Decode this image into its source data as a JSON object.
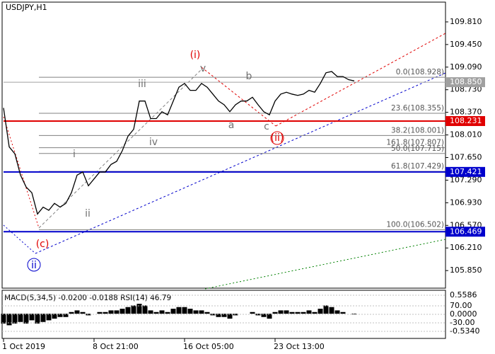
{
  "chart_data": {
    "type": "line",
    "title": "USDJPY,H1",
    "series": [
      {
        "name": "USDJPY",
        "color": "#000000",
        "values": [
          108.44,
          107.82,
          107.71,
          107.37,
          107.18,
          107.09,
          106.75,
          106.86,
          106.81,
          106.92,
          106.86,
          106.92,
          107.09,
          107.37,
          107.42,
          107.2,
          107.31,
          107.42,
          107.42,
          107.54,
          107.59,
          107.76,
          107.99,
          108.1,
          108.55,
          108.55,
          108.27,
          108.27,
          108.38,
          108.33,
          108.55,
          108.77,
          108.83,
          108.72,
          108.72,
          108.83,
          108.77,
          108.66,
          108.55,
          108.49,
          108.38,
          108.49,
          108.55,
          108.55,
          108.61,
          108.49,
          108.38,
          108.33,
          108.55,
          108.66,
          108.69,
          108.66,
          108.64,
          108.66,
          108.72,
          108.69,
          108.83,
          109.0,
          109.02,
          108.94,
          108.94,
          108.89,
          108.87
        ]
      }
    ],
    "xlim": [
      0,
      78
    ],
    "xticks": [
      {
        "value": 0,
        "label": "1 Oct 2019"
      },
      {
        "value": 16,
        "label": "8 Oct 21:00"
      },
      {
        "value": 32,
        "label": "16 Oct 05:00"
      },
      {
        "value": 48,
        "label": "23 Oct 13:00"
      }
    ],
    "ylim": [
      105.57,
      110.125
    ],
    "yticks": [
      {
        "value": 109.81,
        "label": "109.810"
      },
      {
        "value": 109.45,
        "label": "109.450"
      },
      {
        "value": 109.09,
        "label": "109.090"
      },
      {
        "value": 108.73,
        "label": "108.730"
      },
      {
        "value": 108.37,
        "label": "108.370"
      },
      {
        "value": 108.01,
        "label": "108.010"
      },
      {
        "value": 107.65,
        "label": "107.650"
      },
      {
        "value": 107.29,
        "label": "107.290"
      },
      {
        "value": 106.93,
        "label": "106.930"
      },
      {
        "value": 106.57,
        "label": "106.570"
      },
      {
        "value": 106.21,
        "label": "106.210"
      },
      {
        "value": 105.85,
        "label": "105.850"
      }
    ],
    "current": {
      "value": 108.85,
      "label": "108.850",
      "color": "#a0a0a0"
    },
    "levels": [
      {
        "value": 108.231,
        "label": "108.231",
        "color": "#e00000"
      },
      {
        "value": 107.421,
        "label": "107.421",
        "color": "#0000cc"
      },
      {
        "value": 106.469,
        "label": "106.469",
        "color": "#0000cc"
      }
    ],
    "fibo": [
      {
        "value": 108.928,
        "label": "0.0(108.928)"
      },
      {
        "value": 108.355,
        "label": "23.6(108.355)"
      },
      {
        "value": 108.001,
        "label": "38.2(108.001)"
      },
      {
        "value": 107.807,
        "label": "161.8(107.807)"
      },
      {
        "value": 107.715,
        "label": "50.0(107.715)"
      },
      {
        "value": 107.429,
        "label": "61.8(107.429)"
      },
      {
        "value": 106.502,
        "label": "100.0(106.502)"
      }
    ],
    "waves": [
      {
        "label": "(i)",
        "color": "#e00000"
      },
      {
        "label": "v",
        "color": "#707070"
      },
      {
        "label": "iii",
        "color": "#707070"
      },
      {
        "label": "iv",
        "color": "#707070"
      },
      {
        "label": "i",
        "color": "#707070"
      },
      {
        "label": "ii",
        "color": "#707070"
      },
      {
        "label": "b",
        "color": "#707070"
      },
      {
        "label": "a",
        "color": "#707070"
      },
      {
        "label": "c",
        "color": "#707070"
      },
      {
        "label": "(ii)",
        "color": "#e00000"
      },
      {
        "label": "(c)",
        "color": "#e00000"
      },
      {
        "label": "ii",
        "color": "#0000cc"
      }
    ],
    "indicator": {
      "title": "MACD(5,34,5) -0.0200 -0.0188 RSI(14) 46.79",
      "color": "#000000",
      "ylim": [
        -0.534,
        0.5586
      ],
      "scale_labels": [
        "0.5586",
        "70.00",
        "0.0000",
        "-30.00",
        "-0.5340"
      ],
      "values": [
        -0.3,
        -0.35,
        -0.3,
        -0.25,
        -0.3,
        -0.2,
        -0.3,
        -0.25,
        -0.2,
        -0.15,
        -0.1,
        -0.1,
        0.05,
        0.1,
        0.05,
        -0.05,
        0,
        0.05,
        0.05,
        0.1,
        0.1,
        0.15,
        0.2,
        0.25,
        0.3,
        0.25,
        0.1,
        0.05,
        0.1,
        0.05,
        0.15,
        0.2,
        0.2,
        0.15,
        0.1,
        0.1,
        0.05,
        -0.05,
        -0.1,
        -0.1,
        -0.15,
        -0.05,
        0,
        0,
        0.05,
        -0.05,
        -0.1,
        -0.15,
        0.05,
        0.1,
        0.1,
        0.05,
        0.05,
        0.05,
        0.1,
        0.05,
        0.15,
        0.25,
        0.2,
        0.1,
        0.05,
        0,
        -0.02
      ]
    }
  }
}
